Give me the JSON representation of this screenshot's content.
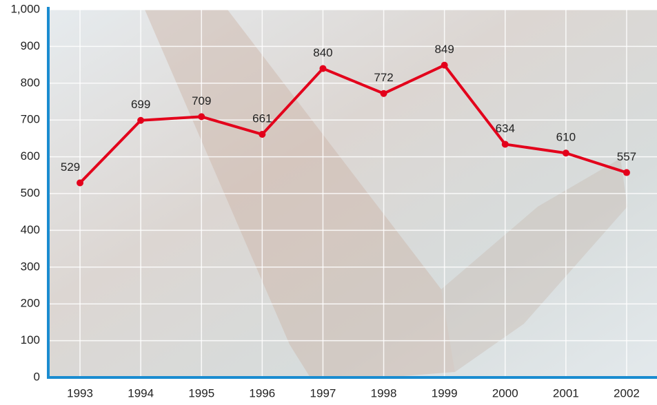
{
  "chart_data": {
    "type": "line",
    "categories": [
      "1993",
      "1994",
      "1995",
      "1996",
      "1997",
      "1998",
      "1999",
      "2000",
      "2001",
      "2002"
    ],
    "values": [
      529,
      699,
      709,
      661,
      840,
      772,
      849,
      634,
      610,
      557
    ],
    "color": "#e3001b",
    "ylim": [
      0,
      1000
    ],
    "yticks": [
      0,
      100,
      200,
      300,
      400,
      500,
      600,
      700,
      800,
      900,
      {
        "value": 1000,
        "label": "1,000"
      }
    ],
    "grid": true
  }
}
